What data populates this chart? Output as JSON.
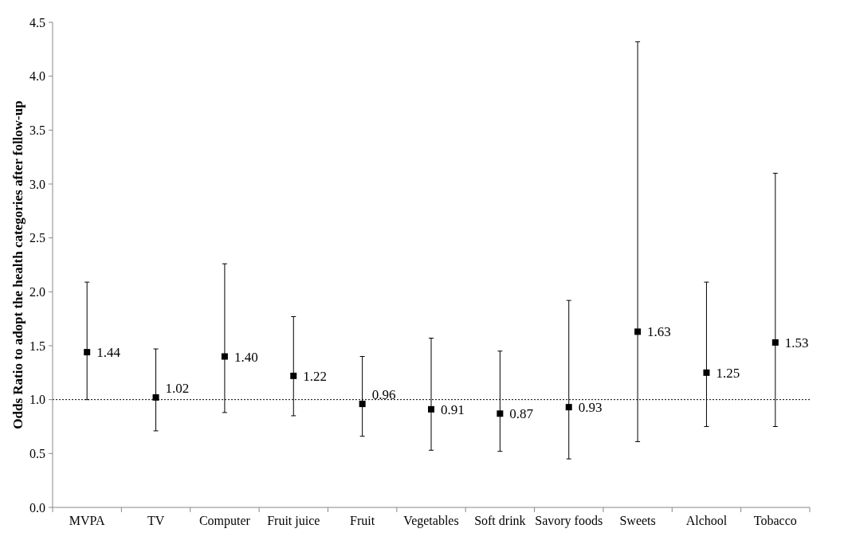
{
  "chart_data": {
    "type": "scatter",
    "ylabel": "Odds Ratio to adopt  the health categories after follow-up",
    "categories": [
      "MVPA",
      "TV",
      "Computer",
      "Fruit juice",
      "Fruit",
      "Vegetables",
      "Soft drink",
      "Savory foods",
      "Sweets",
      "Alchool",
      "Tobacco"
    ],
    "values": [
      1.44,
      1.02,
      1.4,
      1.22,
      0.96,
      0.91,
      0.87,
      0.93,
      1.63,
      1.25,
      1.53
    ],
    "errors": [
      [
        1.0,
        2.09
      ],
      [
        0.71,
        1.47
      ],
      [
        0.88,
        2.26
      ],
      [
        0.85,
        1.77
      ],
      [
        0.66,
        1.4
      ],
      [
        0.53,
        1.57
      ],
      [
        0.52,
        1.45
      ],
      [
        0.45,
        1.92
      ],
      [
        0.61,
        4.32
      ],
      [
        0.75,
        2.09
      ],
      [
        0.75,
        3.1
      ]
    ],
    "value_labels": [
      "1.44",
      "1.02",
      "1.40",
      "1.22",
      "0.96",
      "0.91",
      "0.87",
      "0.93",
      "1.63",
      "1.25",
      "1.53"
    ],
    "color": "#000000",
    "marker": "square",
    "ylim": [
      0,
      4.5
    ],
    "yticks": [
      {
        "value": 0,
        "label": "0.0"
      },
      {
        "value": 0.5,
        "label": "0.5"
      },
      {
        "value": 1,
        "label": "1.0"
      },
      {
        "value": 1.5,
        "label": "1.5"
      },
      {
        "value": 2,
        "label": "2.0"
      },
      {
        "value": 2.5,
        "label": "2.5"
      },
      {
        "value": 3,
        "label": "3.0"
      },
      {
        "value": 3.5,
        "label": "3.5"
      },
      {
        "value": 4,
        "label": "4.0"
      },
      {
        "value": 4.5,
        "label": "4.5"
      }
    ],
    "ref_lines": [
      {
        "axis": "y",
        "value": 1,
        "line_style": "dotted",
        "color": "#000000"
      }
    ],
    "grid": false
  }
}
